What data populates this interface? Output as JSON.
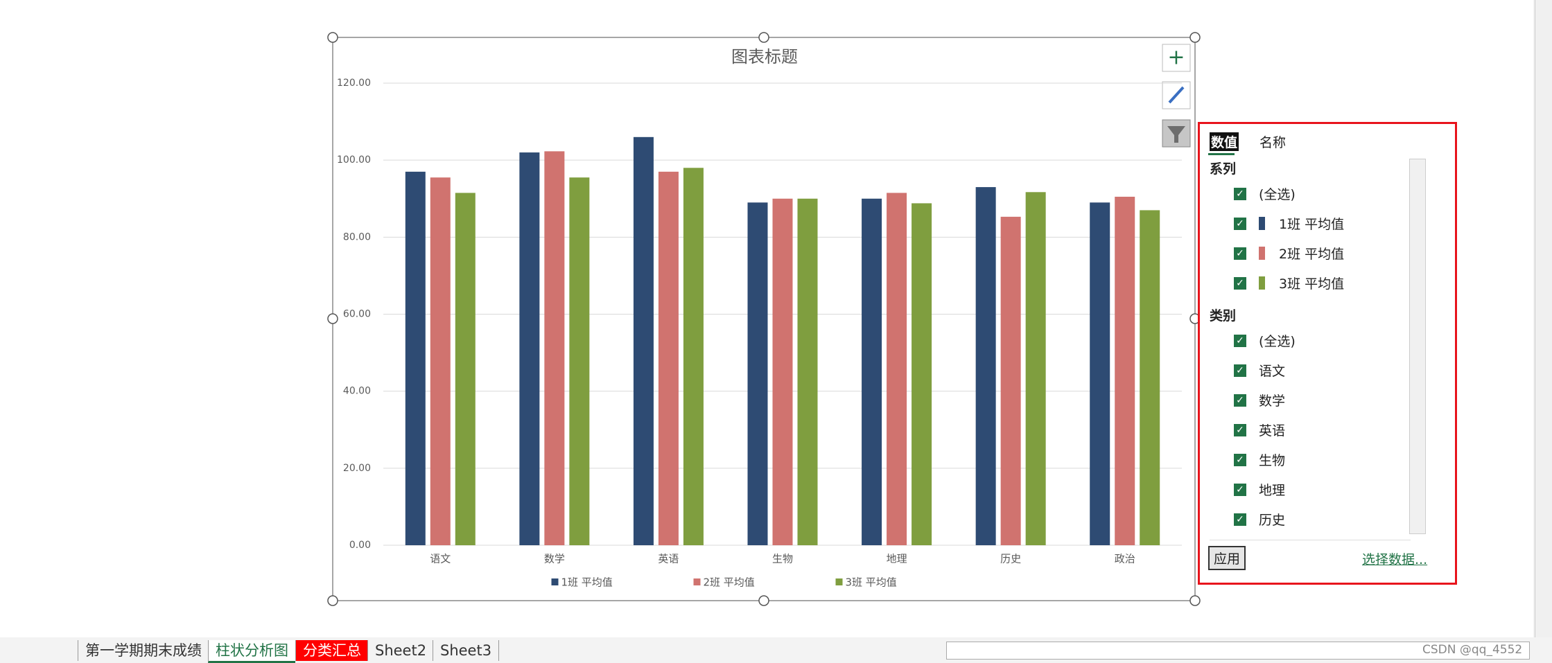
{
  "chart_data": {
    "type": "bar",
    "title": "图表标题",
    "categories": [
      "语文",
      "数学",
      "英语",
      "生物",
      "地理",
      "历史",
      "政治"
    ],
    "series": [
      {
        "name": "1班 平均值",
        "color": "#2e4b73",
        "values": [
          97,
          102,
          106,
          89,
          90,
          93,
          89
        ]
      },
      {
        "name": "2班 平均值",
        "color": "#d0736f",
        "values": [
          95.5,
          102.3,
          97,
          90,
          91.5,
          85.3,
          90.5
        ]
      },
      {
        "name": "3班 平均值",
        "color": "#7f9e3f",
        "values": [
          91.5,
          95.5,
          98,
          90,
          88.8,
          91.7,
          87
        ]
      }
    ],
    "ylim": [
      0,
      120
    ],
    "yticks": [
      {
        "value": 0,
        "label": "0.00"
      },
      {
        "value": 20,
        "label": "20.00"
      },
      {
        "value": 40,
        "label": "40.00"
      },
      {
        "value": 60,
        "label": "60.00"
      },
      {
        "value": 80,
        "label": "80.00"
      },
      {
        "value": 100,
        "label": "100.00"
      },
      {
        "value": 120,
        "label": "120.00"
      }
    ],
    "grid": true,
    "legend": "bottom"
  },
  "filter_panel": {
    "tabs": [
      "数值",
      "名称"
    ],
    "series_header": "系列",
    "category_header": "类别",
    "select_all": "(全选)",
    "apply": "应用",
    "select_data": "选择数据..."
  },
  "sheet_tabs": [
    "第一学期期末成绩",
    "柱状分析图",
    "分类汇总",
    "Sheet2",
    "Sheet3"
  ],
  "watermark": "CSDN @qq_4552"
}
